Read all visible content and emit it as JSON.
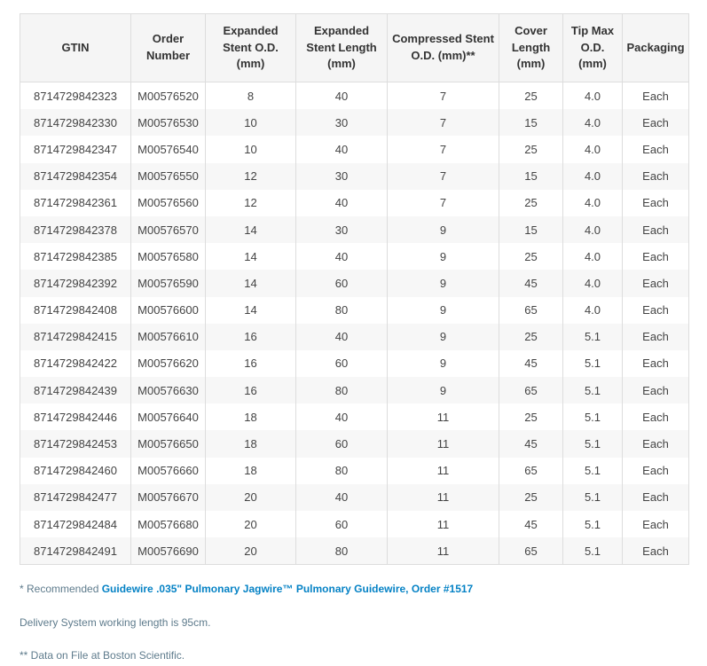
{
  "table": {
    "columns": [
      {
        "id": "gtin",
        "label": "GTIN"
      },
      {
        "id": "order_number",
        "label": "Order Number"
      },
      {
        "id": "expanded_stent_od",
        "label": "Expanded Stent O.D. (mm)"
      },
      {
        "id": "expanded_stent_length",
        "label": "Expanded Stent Length (mm)"
      },
      {
        "id": "compressed_stent_od",
        "label": "Compressed Stent O.D. (mm)**"
      },
      {
        "id": "cover_length",
        "label": "Cover Length (mm)"
      },
      {
        "id": "tip_max_od",
        "label": "Tip Max O.D. (mm)"
      },
      {
        "id": "packaging",
        "label": "Packaging"
      }
    ],
    "rows": [
      [
        "8714729842323",
        "M00576520",
        "8",
        "40",
        "7",
        "25",
        "4.0",
        "Each"
      ],
      [
        "8714729842330",
        "M00576530",
        "10",
        "30",
        "7",
        "15",
        "4.0",
        "Each"
      ],
      [
        "8714729842347",
        "M00576540",
        "10",
        "40",
        "7",
        "25",
        "4.0",
        "Each"
      ],
      [
        "8714729842354",
        "M00576550",
        "12",
        "30",
        "7",
        "15",
        "4.0",
        "Each"
      ],
      [
        "8714729842361",
        "M00576560",
        "12",
        "40",
        "7",
        "25",
        "4.0",
        "Each"
      ],
      [
        "8714729842378",
        "M00576570",
        "14",
        "30",
        "9",
        "15",
        "4.0",
        "Each"
      ],
      [
        "8714729842385",
        "M00576580",
        "14",
        "40",
        "9",
        "25",
        "4.0",
        "Each"
      ],
      [
        "8714729842392",
        "M00576590",
        "14",
        "60",
        "9",
        "45",
        "4.0",
        "Each"
      ],
      [
        "8714729842408",
        "M00576600",
        "14",
        "80",
        "9",
        "65",
        "4.0",
        "Each"
      ],
      [
        "8714729842415",
        "M00576610",
        "16",
        "40",
        "9",
        "25",
        "5.1",
        "Each"
      ],
      [
        "8714729842422",
        "M00576620",
        "16",
        "60",
        "9",
        "45",
        "5.1",
        "Each"
      ],
      [
        "8714729842439",
        "M00576630",
        "16",
        "80",
        "9",
        "65",
        "5.1",
        "Each"
      ],
      [
        "8714729842446",
        "M00576640",
        "18",
        "40",
        "11",
        "25",
        "5.1",
        "Each"
      ],
      [
        "8714729842453",
        "M00576650",
        "18",
        "60",
        "11",
        "45",
        "5.1",
        "Each"
      ],
      [
        "8714729842460",
        "M00576660",
        "18",
        "80",
        "11",
        "65",
        "5.1",
        "Each"
      ],
      [
        "8714729842477",
        "M00576670",
        "20",
        "40",
        "11",
        "25",
        "5.1",
        "Each"
      ],
      [
        "8714729842484",
        "M00576680",
        "20",
        "60",
        "11",
        "45",
        "5.1",
        "Each"
      ],
      [
        "8714729842491",
        "M00576690",
        "20",
        "80",
        "11",
        "65",
        "5.1",
        "Each"
      ]
    ]
  },
  "notes": {
    "note1_prefix": "* Recommended ",
    "note1_link": "Guidewire .035\" Pulmonary Jagwire™ Pulmonary Guidewire, Order #1517",
    "note2": "Delivery System working length is 95cm.",
    "note3": "** Data on File at Boston Scientific."
  },
  "colors": {
    "header_background": "#f5f5f5",
    "row_stripe": "#f7f7f7",
    "border": "#dddddd",
    "cell_text": "#444444",
    "header_text": "#333333",
    "note_text": "#5e7b8c",
    "link_blue": "#0582c5"
  }
}
